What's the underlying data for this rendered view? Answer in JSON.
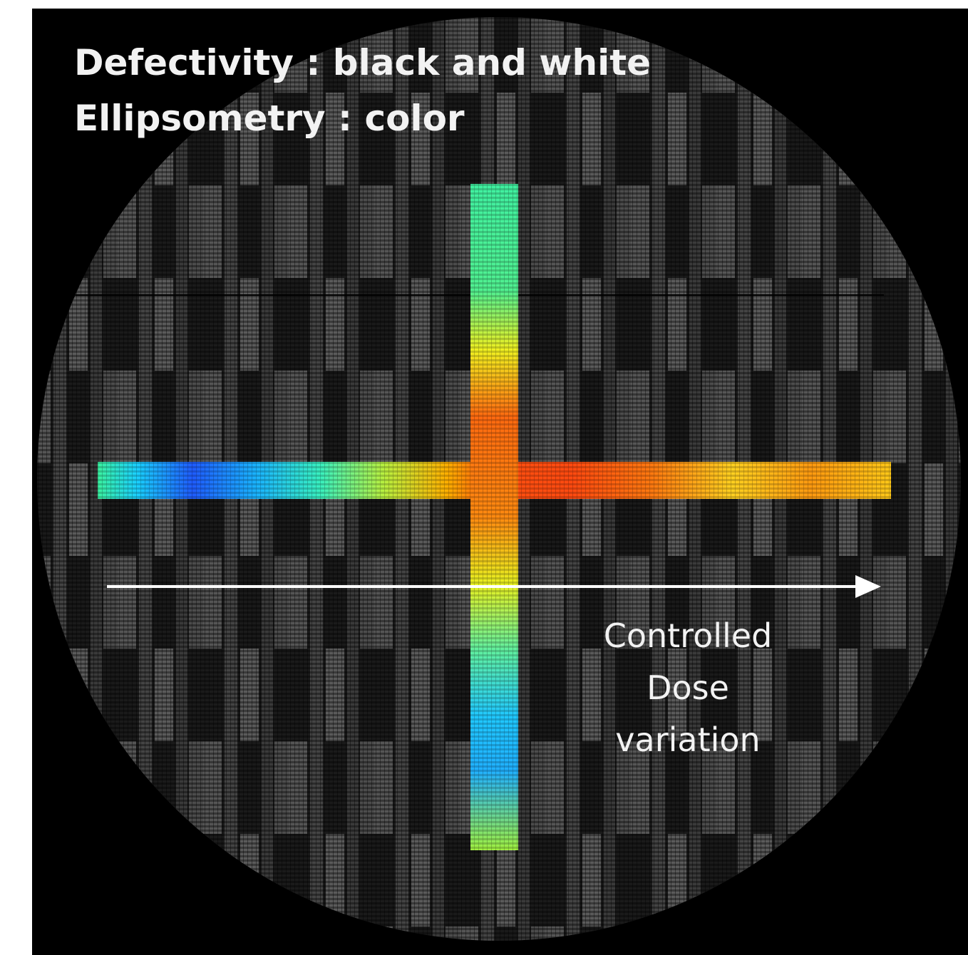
{
  "legend": {
    "lines": [
      "Defectivity : black and white",
      "Ellipsometry : color"
    ]
  },
  "annotation": {
    "lines": [
      "Controlled",
      "Dose",
      "variation"
    ]
  }
}
